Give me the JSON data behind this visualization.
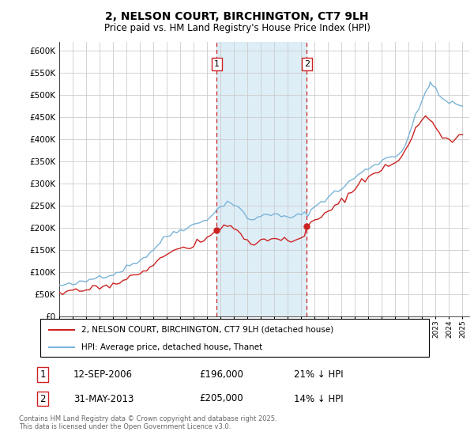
{
  "title": "2, NELSON COURT, BIRCHINGTON, CT7 9LH",
  "subtitle": "Price paid vs. HM Land Registry's House Price Index (HPI)",
  "hpi_label": "HPI: Average price, detached house, Thanet",
  "property_label": "2, NELSON COURT, BIRCHINGTON, CT7 9LH (detached house)",
  "sale1_date": "12-SEP-2006",
  "sale1_price": 196000,
  "sale1_note": "21% ↓ HPI",
  "sale2_date": "31-MAY-2013",
  "sale2_price": 205000,
  "sale2_note": "14% ↓ HPI",
  "sale1_year": 2006.71,
  "sale2_year": 2013.41,
  "copyright": "Contains HM Land Registry data © Crown copyright and database right 2025.\nThis data is licensed under the Open Government Licence v3.0.",
  "hpi_color": "#7ab4d8",
  "property_color": "#cc2222",
  "vline_color": "#cc2222",
  "shade_color": "#d0e8f5",
  "ylim_max": 620000,
  "ylim_min": 0,
  "start_year": 1995,
  "end_year": 2025,
  "hpi_points": [
    [
      1995.0,
      70000
    ],
    [
      1995.25,
      71000
    ],
    [
      1995.5,
      71500
    ],
    [
      1995.75,
      72000
    ],
    [
      1996.0,
      73000
    ],
    [
      1996.25,
      74500
    ],
    [
      1996.5,
      76000
    ],
    [
      1996.75,
      78000
    ],
    [
      1997.0,
      80000
    ],
    [
      1997.25,
      83000
    ],
    [
      1997.5,
      86000
    ],
    [
      1997.75,
      89000
    ],
    [
      1998.0,
      92000
    ],
    [
      1998.25,
      93000
    ],
    [
      1998.5,
      94000
    ],
    [
      1998.75,
      94500
    ],
    [
      1999.0,
      96000
    ],
    [
      1999.25,
      99000
    ],
    [
      1999.5,
      103000
    ],
    [
      1999.75,
      107000
    ],
    [
      2000.0,
      112000
    ],
    [
      2000.25,
      116000
    ],
    [
      2000.5,
      120000
    ],
    [
      2000.75,
      124000
    ],
    [
      2001.0,
      128000
    ],
    [
      2001.25,
      133000
    ],
    [
      2001.5,
      138000
    ],
    [
      2001.75,
      144000
    ],
    [
      2002.0,
      152000
    ],
    [
      2002.25,
      160000
    ],
    [
      2002.5,
      168000
    ],
    [
      2002.75,
      175000
    ],
    [
      2003.0,
      181000
    ],
    [
      2003.25,
      186000
    ],
    [
      2003.5,
      190000
    ],
    [
      2003.75,
      193000
    ],
    [
      2004.0,
      196000
    ],
    [
      2004.25,
      200000
    ],
    [
      2004.5,
      203000
    ],
    [
      2004.75,
      205000
    ],
    [
      2005.0,
      207000
    ],
    [
      2005.25,
      210000
    ],
    [
      2005.5,
      213000
    ],
    [
      2005.75,
      218000
    ],
    [
      2006.0,
      222000
    ],
    [
      2006.25,
      228000
    ],
    [
      2006.5,
      234000
    ],
    [
      2006.75,
      240000
    ],
    [
      2007.0,
      248000
    ],
    [
      2007.25,
      255000
    ],
    [
      2007.5,
      260000
    ],
    [
      2007.75,
      258000
    ],
    [
      2008.0,
      253000
    ],
    [
      2008.25,
      248000
    ],
    [
      2008.5,
      240000
    ],
    [
      2008.75,
      232000
    ],
    [
      2009.0,
      224000
    ],
    [
      2009.25,
      220000
    ],
    [
      2009.5,
      218000
    ],
    [
      2009.75,
      222000
    ],
    [
      2010.0,
      228000
    ],
    [
      2010.25,
      232000
    ],
    [
      2010.5,
      234000
    ],
    [
      2010.75,
      232000
    ],
    [
      2011.0,
      230000
    ],
    [
      2011.25,
      228000
    ],
    [
      2011.5,
      226000
    ],
    [
      2011.75,
      225000
    ],
    [
      2012.0,
      224000
    ],
    [
      2012.25,
      225000
    ],
    [
      2012.5,
      226000
    ],
    [
      2012.75,
      228000
    ],
    [
      2013.0,
      230000
    ],
    [
      2013.25,
      232000
    ],
    [
      2013.5,
      235000
    ],
    [
      2013.75,
      240000
    ],
    [
      2014.0,
      248000
    ],
    [
      2014.25,
      255000
    ],
    [
      2014.5,
      260000
    ],
    [
      2014.75,
      265000
    ],
    [
      2015.0,
      270000
    ],
    [
      2015.25,
      276000
    ],
    [
      2015.5,
      280000
    ],
    [
      2015.75,
      284000
    ],
    [
      2016.0,
      290000
    ],
    [
      2016.25,
      296000
    ],
    [
      2016.5,
      302000
    ],
    [
      2016.75,
      308000
    ],
    [
      2017.0,
      315000
    ],
    [
      2017.25,
      320000
    ],
    [
      2017.5,
      325000
    ],
    [
      2017.75,
      330000
    ],
    [
      2018.0,
      335000
    ],
    [
      2018.25,
      340000
    ],
    [
      2018.5,
      345000
    ],
    [
      2018.75,
      348000
    ],
    [
      2019.0,
      352000
    ],
    [
      2019.25,
      357000
    ],
    [
      2019.5,
      360000
    ],
    [
      2019.75,
      362000
    ],
    [
      2020.0,
      365000
    ],
    [
      2020.25,
      368000
    ],
    [
      2020.5,
      375000
    ],
    [
      2020.75,
      390000
    ],
    [
      2021.0,
      410000
    ],
    [
      2021.25,
      430000
    ],
    [
      2021.5,
      452000
    ],
    [
      2021.75,
      468000
    ],
    [
      2022.0,
      488000
    ],
    [
      2022.25,
      508000
    ],
    [
      2022.5,
      525000
    ],
    [
      2022.6,
      530000
    ],
    [
      2022.75,
      522000
    ],
    [
      2023.0,
      510000
    ],
    [
      2023.25,
      500000
    ],
    [
      2023.5,
      492000
    ],
    [
      2023.75,
      488000
    ],
    [
      2024.0,
      485000
    ],
    [
      2024.25,
      483000
    ],
    [
      2024.5,
      478000
    ],
    [
      2024.75,
      475000
    ],
    [
      2025.0,
      478000
    ]
  ],
  "prop_points": [
    [
      1995.0,
      55000
    ],
    [
      1995.25,
      55500
    ],
    [
      1995.5,
      55000
    ],
    [
      1995.75,
      56000
    ],
    [
      1996.0,
      57000
    ],
    [
      1996.25,
      57500
    ],
    [
      1996.5,
      58000
    ],
    [
      1996.75,
      59000
    ],
    [
      1997.0,
      60000
    ],
    [
      1997.25,
      62000
    ],
    [
      1997.5,
      64000
    ],
    [
      1997.75,
      66000
    ],
    [
      1998.0,
      68000
    ],
    [
      1998.25,
      69000
    ],
    [
      1998.5,
      70000
    ],
    [
      1998.75,
      70500
    ],
    [
      1999.0,
      72000
    ],
    [
      1999.25,
      75000
    ],
    [
      1999.5,
      79000
    ],
    [
      1999.75,
      83000
    ],
    [
      2000.0,
      87000
    ],
    [
      2000.25,
      90000
    ],
    [
      2000.5,
      93000
    ],
    [
      2000.75,
      96000
    ],
    [
      2001.0,
      99000
    ],
    [
      2001.25,
      103000
    ],
    [
      2001.5,
      107000
    ],
    [
      2001.75,
      112000
    ],
    [
      2002.0,
      118000
    ],
    [
      2002.25,
      124000
    ],
    [
      2002.5,
      130000
    ],
    [
      2002.75,
      136000
    ],
    [
      2003.0,
      140000
    ],
    [
      2003.25,
      144000
    ],
    [
      2003.5,
      147000
    ],
    [
      2003.75,
      150000
    ],
    [
      2004.0,
      153000
    ],
    [
      2004.25,
      156000
    ],
    [
      2004.5,
      158000
    ],
    [
      2004.75,
      160000
    ],
    [
      2005.0,
      162000
    ],
    [
      2005.25,
      165000
    ],
    [
      2005.5,
      168000
    ],
    [
      2005.75,
      173000
    ],
    [
      2006.0,
      178000
    ],
    [
      2006.25,
      183000
    ],
    [
      2006.5,
      188000
    ],
    [
      2006.71,
      196000
    ],
    [
      2006.75,
      197000
    ],
    [
      2007.0,
      200000
    ],
    [
      2007.25,
      204000
    ],
    [
      2007.5,
      207000
    ],
    [
      2007.75,
      205000
    ],
    [
      2008.0,
      200000
    ],
    [
      2008.25,
      194000
    ],
    [
      2008.5,
      185000
    ],
    [
      2008.75,
      177000
    ],
    [
      2009.0,
      170000
    ],
    [
      2009.25,
      166000
    ],
    [
      2009.5,
      164000
    ],
    [
      2009.75,
      168000
    ],
    [
      2010.0,
      174000
    ],
    [
      2010.25,
      178000
    ],
    [
      2010.5,
      180000
    ],
    [
      2010.75,
      178000
    ],
    [
      2011.0,
      176000
    ],
    [
      2011.25,
      174000
    ],
    [
      2011.5,
      172000
    ],
    [
      2011.75,
      171000
    ],
    [
      2012.0,
      170000
    ],
    [
      2012.25,
      171000
    ],
    [
      2012.5,
      172000
    ],
    [
      2012.75,
      174000
    ],
    [
      2013.0,
      176000
    ],
    [
      2013.25,
      180000
    ],
    [
      2013.41,
      205000
    ],
    [
      2013.5,
      207000
    ],
    [
      2013.75,
      210000
    ],
    [
      2014.0,
      215000
    ],
    [
      2014.25,
      220000
    ],
    [
      2014.5,
      226000
    ],
    [
      2014.75,
      232000
    ],
    [
      2015.0,
      238000
    ],
    [
      2015.25,
      244000
    ],
    [
      2015.5,
      249000
    ],
    [
      2015.75,
      255000
    ],
    [
      2016.0,
      261000
    ],
    [
      2016.25,
      268000
    ],
    [
      2016.5,
      275000
    ],
    [
      2016.75,
      282000
    ],
    [
      2017.0,
      290000
    ],
    [
      2017.25,
      297000
    ],
    [
      2017.5,
      303000
    ],
    [
      2017.75,
      308000
    ],
    [
      2018.0,
      313000
    ],
    [
      2018.25,
      318000
    ],
    [
      2018.5,
      323000
    ],
    [
      2018.75,
      327000
    ],
    [
      2019.0,
      332000
    ],
    [
      2019.25,
      337000
    ],
    [
      2019.5,
      340000
    ],
    [
      2019.75,
      343000
    ],
    [
      2020.0,
      346000
    ],
    [
      2020.25,
      350000
    ],
    [
      2020.5,
      358000
    ],
    [
      2020.75,
      372000
    ],
    [
      2021.0,
      390000
    ],
    [
      2021.25,
      408000
    ],
    [
      2021.5,
      425000
    ],
    [
      2021.75,
      438000
    ],
    [
      2022.0,
      448000
    ],
    [
      2022.25,
      455000
    ],
    [
      2022.4,
      452000
    ],
    [
      2022.6,
      445000
    ],
    [
      2022.75,
      438000
    ],
    [
      2023.0,
      425000
    ],
    [
      2023.25,
      415000
    ],
    [
      2023.5,
      405000
    ],
    [
      2023.75,
      400000
    ],
    [
      2024.0,
      398000
    ],
    [
      2024.25,
      400000
    ],
    [
      2024.5,
      403000
    ],
    [
      2024.75,
      408000
    ],
    [
      2025.0,
      412000
    ]
  ]
}
